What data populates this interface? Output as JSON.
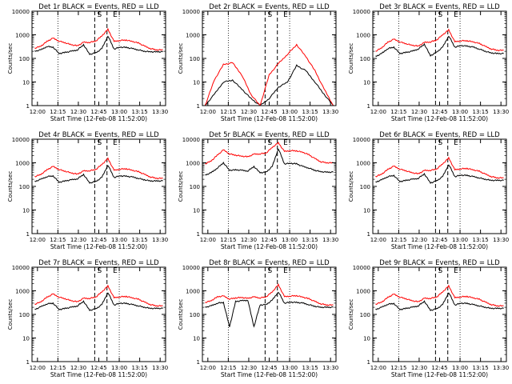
{
  "chart_data": [
    {
      "type": "line",
      "title": "Det 1r BLACK = Events, RED = LLD",
      "xlabel": "Start Time (12-Feb-08 11:52:00)",
      "ylabel": "Counts/sec",
      "yscale": "log",
      "ylim": [
        1,
        10000
      ],
      "xlim": [
        0,
        98
      ],
      "xticks": [
        "12:00",
        "12:15",
        "12:30",
        "12:45",
        "13:00",
        "13:15",
        "13:30"
      ],
      "yticks": [
        "1",
        "10",
        "100",
        "1000",
        "10000"
      ],
      "markers": [
        "S",
        "E"
      ],
      "profile": "normal",
      "grid": "vertical dotted",
      "series": [
        {
          "color": "#000000",
          "values": [
            200,
            230,
            320,
            300,
            160,
            180,
            200,
            230,
            380,
            150,
            170,
            260,
            900,
            250,
            300,
            290,
            260,
            230,
            200,
            190,
            190,
            190
          ]
        },
        {
          "color": "#ff0000",
          "values": [
            270,
            330,
            520,
            720,
            540,
            460,
            380,
            340,
            480,
            480,
            540,
            900,
            1700,
            520,
            580,
            600,
            520,
            450,
            330,
            260,
            230,
            230
          ]
        }
      ]
    },
    {
      "type": "line",
      "title": "Det 2r BLACK = Events, RED = LLD",
      "xlabel": "Start Time (12-Feb-08 11:52:00)",
      "ylabel": "Counts/sec",
      "yscale": "log",
      "ylim": [
        1,
        10000
      ],
      "xlim": [
        0,
        98
      ],
      "xticks": [
        "12:00",
        "12:15",
        "12:30",
        "12:45",
        "13:00",
        "13:15",
        "13:30"
      ],
      "yticks": [
        "1",
        "10",
        "100",
        "1000",
        "10000"
      ],
      "markers": [
        "S",
        "E"
      ],
      "profile": "sparse",
      "grid": "vertical dotted",
      "series": [
        {
          "color": "#000000",
          "values": [
            1,
            3,
            10,
            12,
            5,
            2,
            1,
            2,
            6,
            10,
            50,
            30,
            10,
            3,
            1
          ]
        },
        {
          "color": "#ff0000",
          "values": [
            1,
            12,
            55,
            65,
            20,
            3,
            1,
            20,
            60,
            150,
            380,
            120,
            30,
            5,
            1
          ]
        }
      ]
    },
    {
      "type": "line",
      "title": "Det 3r BLACK = Events, RED = LLD",
      "xlabel": "Start Time (12-Feb-08 11:52:00)",
      "ylabel": "Counts/sec",
      "yscale": "log",
      "ylim": [
        1,
        10000
      ],
      "xlim": [
        0,
        98
      ],
      "xticks": [
        "12:00",
        "12:15",
        "12:30",
        "12:45",
        "13:00",
        "13:15",
        "13:30"
      ],
      "yticks": [
        "1",
        "10",
        "100",
        "1000",
        "10000"
      ],
      "markers": [
        "S",
        "E"
      ],
      "profile": "normal",
      "grid": "vertical dotted",
      "series": [
        {
          "color": "#000000",
          "values": [
            120,
            160,
            260,
            300,
            160,
            180,
            200,
            250,
            400,
            130,
            180,
            300,
            900,
            300,
            350,
            330,
            300,
            250,
            200,
            170,
            160,
            160
          ]
        },
        {
          "color": "#ff0000",
          "values": [
            200,
            280,
            480,
            650,
            500,
            420,
            360,
            330,
            470,
            500,
            600,
            1000,
            1600,
            500,
            560,
            560,
            500,
            430,
            320,
            250,
            220,
            220
          ]
        }
      ]
    },
    {
      "type": "line",
      "title": "Det 4r BLACK = Events, RED = LLD",
      "xlabel": "Start Time (12-Feb-08 11:52:00)",
      "ylabel": "Counts/sec",
      "yscale": "log",
      "ylim": [
        1,
        10000
      ],
      "xlim": [
        0,
        98
      ],
      "xticks": [
        "12:00",
        "12:15",
        "12:30",
        "12:45",
        "13:00",
        "13:15",
        "13:30"
      ],
      "yticks": [
        "1",
        "10",
        "100",
        "1000",
        "10000"
      ],
      "markers": [
        "S",
        "E"
      ],
      "profile": "normal",
      "grid": "vertical dotted",
      "series": [
        {
          "color": "#000000",
          "values": [
            160,
            200,
            260,
            280,
            150,
            170,
            190,
            210,
            320,
            140,
            160,
            240,
            800,
            240,
            280,
            270,
            250,
            220,
            190,
            170,
            170,
            170
          ]
        },
        {
          "color": "#ff0000",
          "values": [
            260,
            320,
            500,
            700,
            520,
            440,
            370,
            330,
            450,
            460,
            520,
            850,
            1500,
            480,
            540,
            560,
            480,
            420,
            320,
            250,
            220,
            220
          ]
        }
      ]
    },
    {
      "type": "line",
      "title": "Det 5r BLACK = Events, RED = LLD",
      "xlabel": "Start Time (12-Feb-08 11:52:00)",
      "ylabel": "Counts/sec",
      "yscale": "log",
      "ylim": [
        1,
        10000
      ],
      "xlim": [
        0,
        98
      ],
      "xticks": [
        "12:00",
        "12:15",
        "12:30",
        "12:45",
        "13:00",
        "13:15",
        "13:30"
      ],
      "yticks": [
        "1",
        "10",
        "100",
        "1000",
        "10000"
      ],
      "markers": [
        "S",
        "E"
      ],
      "profile": "high",
      "grid": "vertical dotted",
      "series": [
        {
          "color": "#000000",
          "values": [
            300,
            380,
            600,
            1000,
            480,
            500,
            480,
            450,
            700,
            380,
            400,
            700,
            4000,
            900,
            950,
            900,
            700,
            600,
            480,
            420,
            400,
            400
          ]
        },
        {
          "color": "#ff0000",
          "values": [
            900,
            1200,
            2100,
            3500,
            2400,
            2100,
            1900,
            1800,
            2300,
            2400,
            2600,
            4500,
            7000,
            3000,
            3300,
            3200,
            2800,
            2200,
            1500,
            1100,
            1000,
            1000
          ]
        }
      ]
    },
    {
      "type": "line",
      "title": "Det 6r BLACK = Events, RED = LLD",
      "xlabel": "Start Time (12-Feb-08 11:52:00)",
      "ylabel": "Counts/sec",
      "yscale": "log",
      "ylim": [
        1,
        10000
      ],
      "xlim": [
        0,
        98
      ],
      "xticks": [
        "12:00",
        "12:15",
        "12:30",
        "12:45",
        "13:00",
        "13:15",
        "13:30"
      ],
      "yticks": [
        "1",
        "10",
        "100",
        "1000",
        "10000"
      ],
      "markers": [
        "S",
        "E"
      ],
      "profile": "normal",
      "grid": "vertical dotted",
      "series": [
        {
          "color": "#000000",
          "values": [
            150,
            190,
            260,
            290,
            160,
            180,
            200,
            220,
            340,
            140,
            170,
            260,
            850,
            260,
            300,
            290,
            260,
            230,
            200,
            180,
            180,
            180
          ]
        },
        {
          "color": "#ff0000",
          "values": [
            260,
            330,
            520,
            720,
            540,
            460,
            380,
            340,
            470,
            480,
            540,
            900,
            1600,
            500,
            560,
            580,
            500,
            440,
            330,
            260,
            230,
            230
          ]
        }
      ]
    },
    {
      "type": "line",
      "title": "Det 7r BLACK = Events, RED = LLD",
      "xlabel": "Start Time (12-Feb-08 11:52:00)",
      "ylabel": "Counts/sec",
      "yscale": "log",
      "ylim": [
        1,
        10000
      ],
      "xlim": [
        0,
        98
      ],
      "xticks": [
        "12:00",
        "12:15",
        "12:30",
        "12:45",
        "13:00",
        "13:15",
        "13:30"
      ],
      "yticks": [
        "1",
        "10",
        "100",
        "1000",
        "10000"
      ],
      "markers": [
        "S",
        "E"
      ],
      "profile": "normal",
      "grid": "vertical dotted",
      "series": [
        {
          "color": "#000000",
          "values": [
            160,
            210,
            280,
            300,
            160,
            180,
            200,
            230,
            360,
            150,
            170,
            260,
            850,
            250,
            300,
            290,
            260,
            230,
            200,
            180,
            180,
            180
          ]
        },
        {
          "color": "#ff0000",
          "values": [
            270,
            340,
            530,
            730,
            540,
            460,
            380,
            340,
            480,
            480,
            540,
            900,
            1600,
            500,
            560,
            580,
            500,
            440,
            330,
            260,
            230,
            230
          ]
        }
      ]
    },
    {
      "type": "line",
      "title": "Det 8r BLACK = Events, RED = LLD",
      "xlabel": "Start Time (12-Feb-08 11:52:00)",
      "ylabel": "Counts/sec",
      "yscale": "log",
      "ylim": [
        1,
        10000
      ],
      "xlim": [
        0,
        98
      ],
      "xticks": [
        "12:00",
        "12:15",
        "12:30",
        "12:45",
        "13:00",
        "13:15",
        "13:30"
      ],
      "yticks": [
        "1",
        "10",
        "100",
        "1000",
        "10000"
      ],
      "markers": [
        "S",
        "E"
      ],
      "profile": "dips",
      "grid": "vertical dotted",
      "series": [
        {
          "color": "#000000",
          "values": [
            200,
            230,
            300,
            320,
            30,
            350,
            380,
            400,
            30,
            250,
            260,
            400,
            900,
            300,
            330,
            320,
            300,
            260,
            220,
            200,
            200,
            200
          ]
        },
        {
          "color": "#ff0000",
          "values": [
            320,
            380,
            550,
            600,
            450,
            500,
            520,
            480,
            550,
            500,
            560,
            900,
            1800,
            560,
            600,
            620,
            540,
            460,
            350,
            280,
            250,
            250
          ]
        }
      ]
    },
    {
      "type": "line",
      "title": "Det 9r BLACK = Events, RED = LLD",
      "xlabel": "Start Time (12-Feb-08 11:52:00)",
      "ylabel": "Counts/sec",
      "yscale": "log",
      "ylim": [
        1,
        10000
      ],
      "xlim": [
        0,
        98
      ],
      "xticks": [
        "12:00",
        "12:15",
        "12:30",
        "12:45",
        "13:00",
        "13:15",
        "13:30"
      ],
      "yticks": [
        "1",
        "10",
        "100",
        "1000",
        "10000"
      ],
      "markers": [
        "S",
        "E"
      ],
      "profile": "normal",
      "grid": "vertical dotted",
      "series": [
        {
          "color": "#000000",
          "values": [
            160,
            200,
            270,
            290,
            160,
            180,
            200,
            230,
            360,
            150,
            170,
            260,
            850,
            250,
            300,
            290,
            260,
            230,
            200,
            180,
            180,
            180
          ]
        },
        {
          "color": "#ff0000",
          "values": [
            270,
            330,
            520,
            720,
            540,
            460,
            380,
            340,
            480,
            480,
            540,
            900,
            1600,
            500,
            560,
            580,
            500,
            440,
            330,
            260,
            230,
            230
          ]
        }
      ]
    }
  ]
}
